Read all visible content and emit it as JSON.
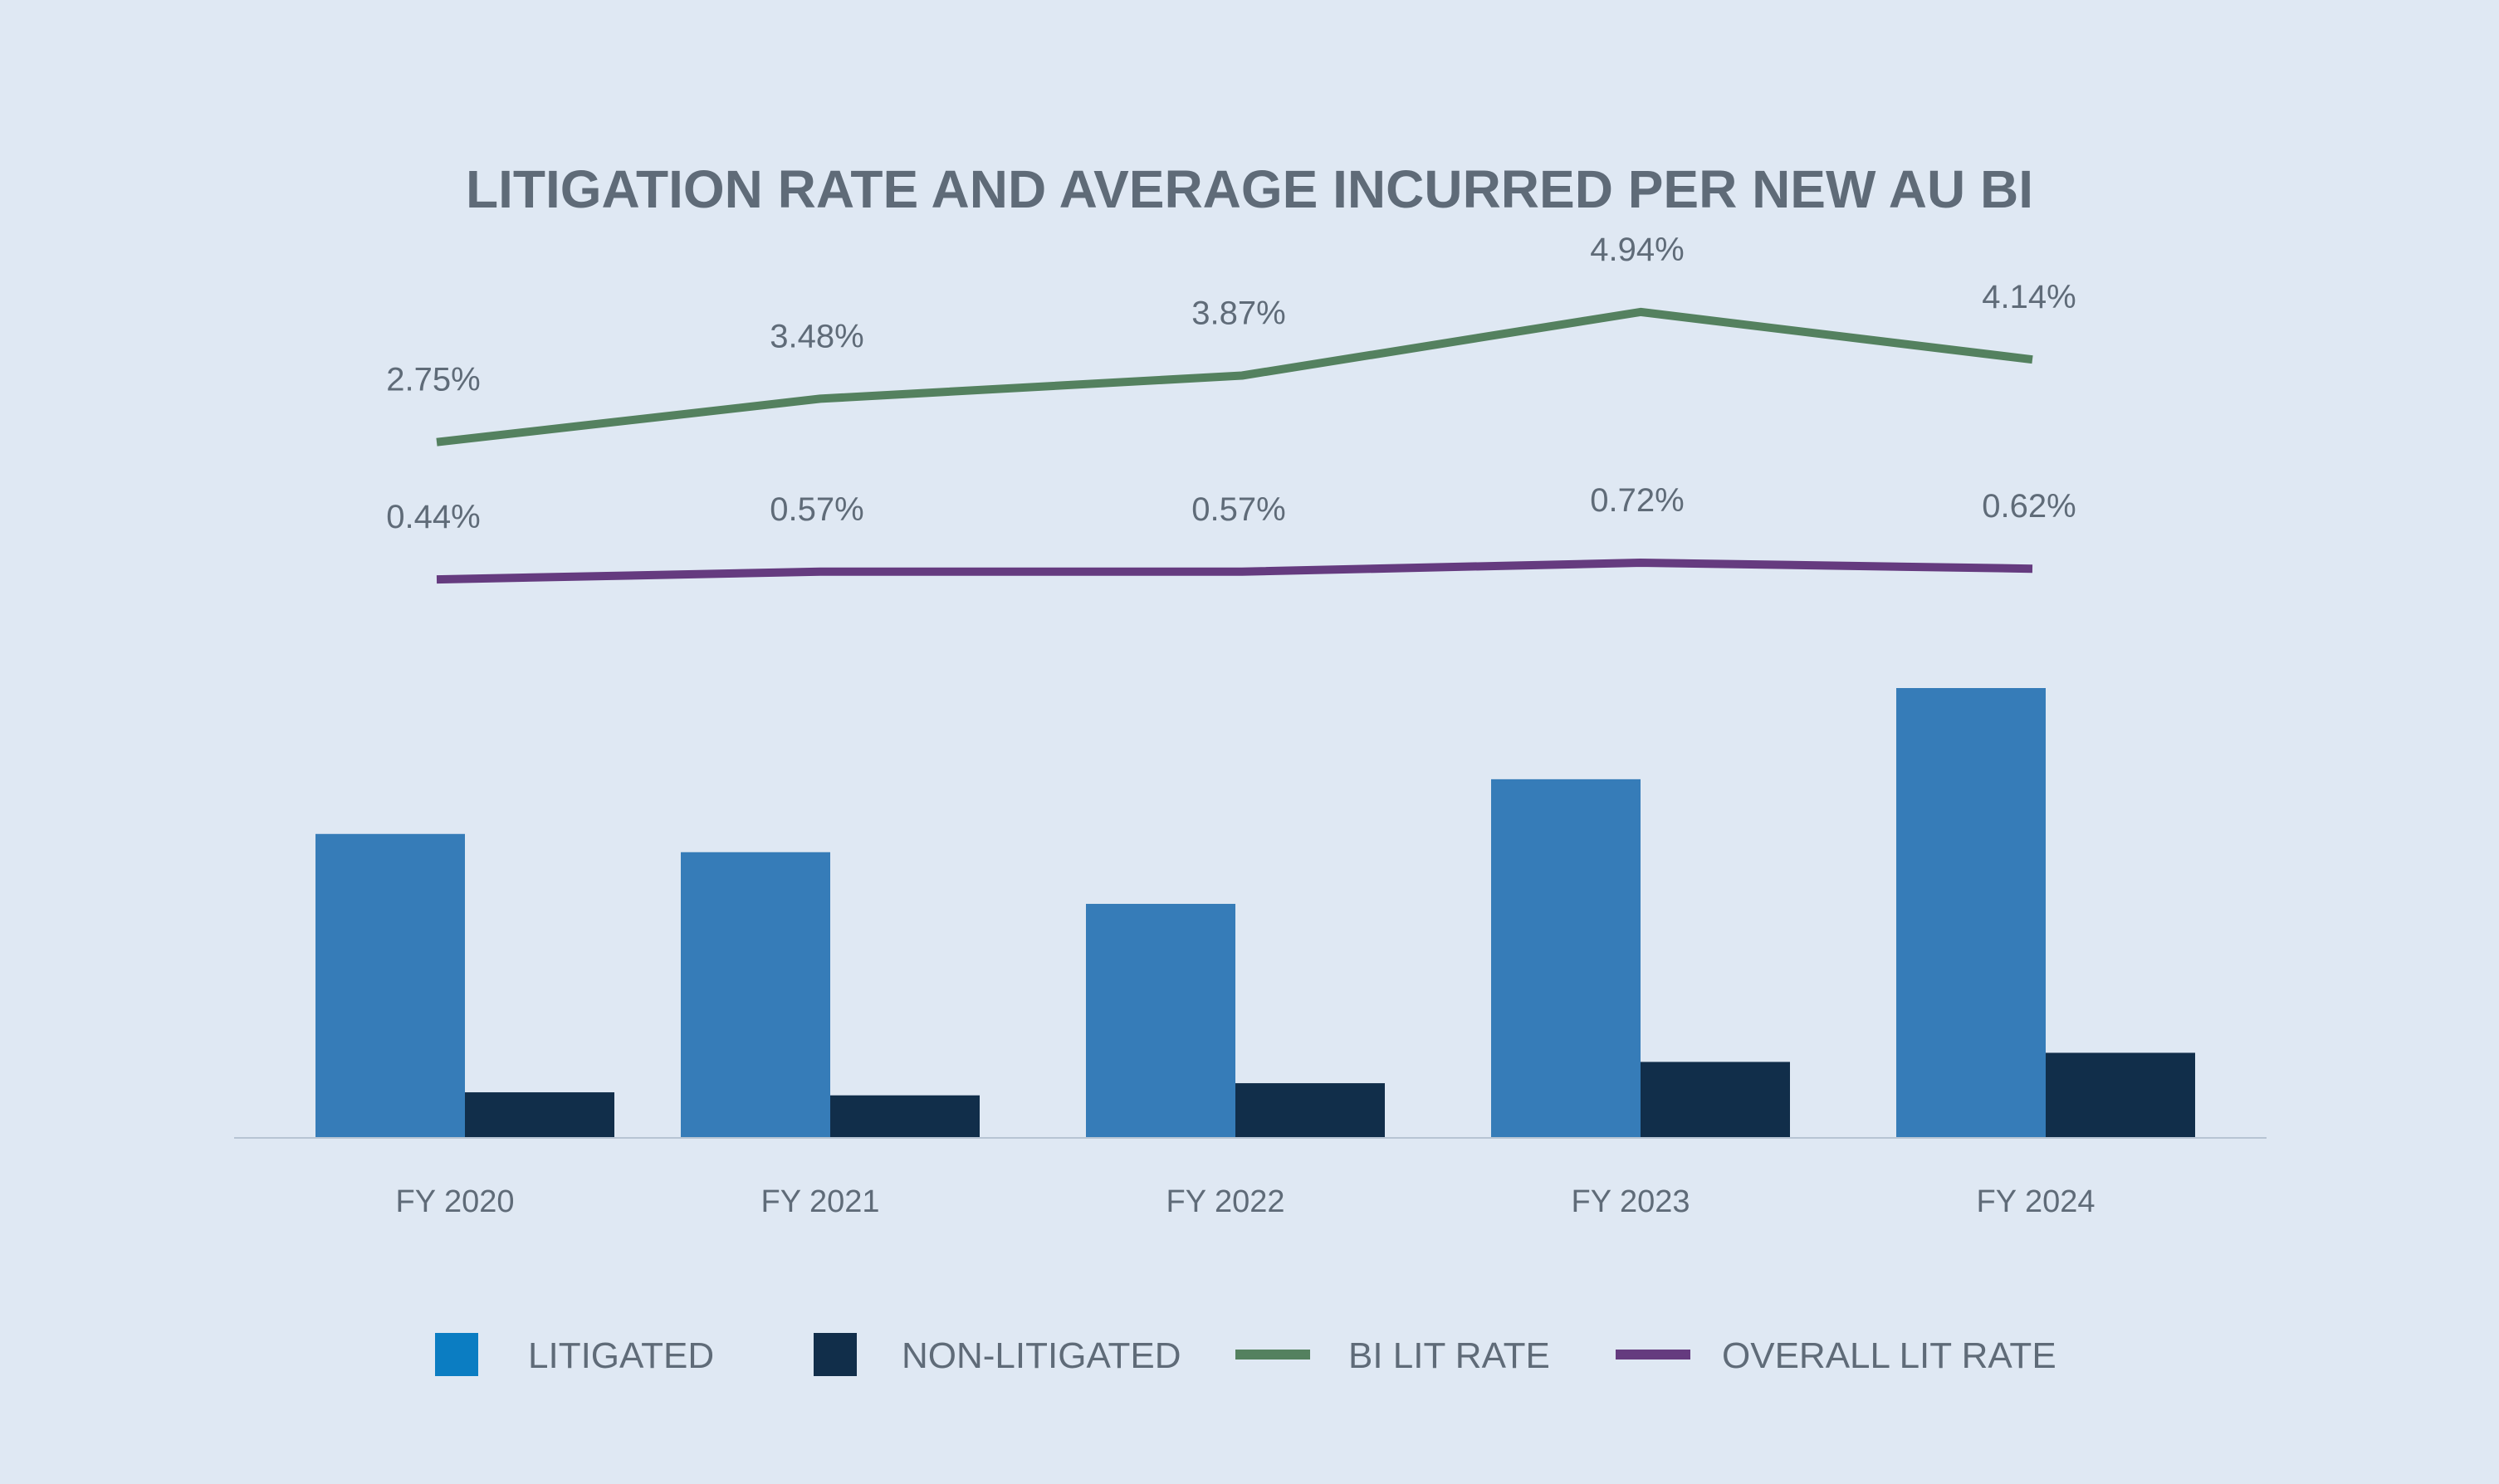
{
  "chart_data": {
    "type": "bar",
    "title": "LITIGATION RATE AND AVERAGE INCURRED PER NEW AU BI",
    "categories": [
      "FY 2020",
      "FY 2021",
      "FY 2022",
      "FY 2023",
      "FY 2024"
    ],
    "series": [
      {
        "name": "LITIGATED",
        "type": "bar",
        "axis": "left",
        "values": [
          100,
          94,
          77,
          118,
          148
        ]
      },
      {
        "name": "NON-LITIGATED",
        "type": "bar",
        "axis": "left",
        "values": [
          15,
          14,
          18,
          25,
          28
        ]
      },
      {
        "name": "BI LIT RATE",
        "type": "line",
        "axis": "right",
        "values": [
          2.75,
          3.48,
          3.87,
          4.94,
          4.14
        ],
        "labels": [
          "2.75%",
          "3.48%",
          "3.87%",
          "4.94%",
          "4.14%"
        ]
      },
      {
        "name": "OVERALL LIT RATE",
        "type": "line",
        "axis": "right",
        "values": [
          0.44,
          0.57,
          0.57,
          0.72,
          0.62
        ],
        "labels": [
          "0.44%",
          "0.57%",
          "0.57%",
          "0.72%",
          "0.62%"
        ]
      }
    ],
    "colors": {
      "litigated_bar": "#367cb8",
      "litigated_legend": "#0b7dc2",
      "non_litigated": "#112e4a",
      "bi_lit_rate": "#54815f",
      "overall_lit_rate": "#653b7f"
    },
    "legend_position": "bottom",
    "grid": false,
    "bar_axis_ylim": [
      0,
      160
    ],
    "line_axis_ylim": [
      0,
      6
    ]
  }
}
